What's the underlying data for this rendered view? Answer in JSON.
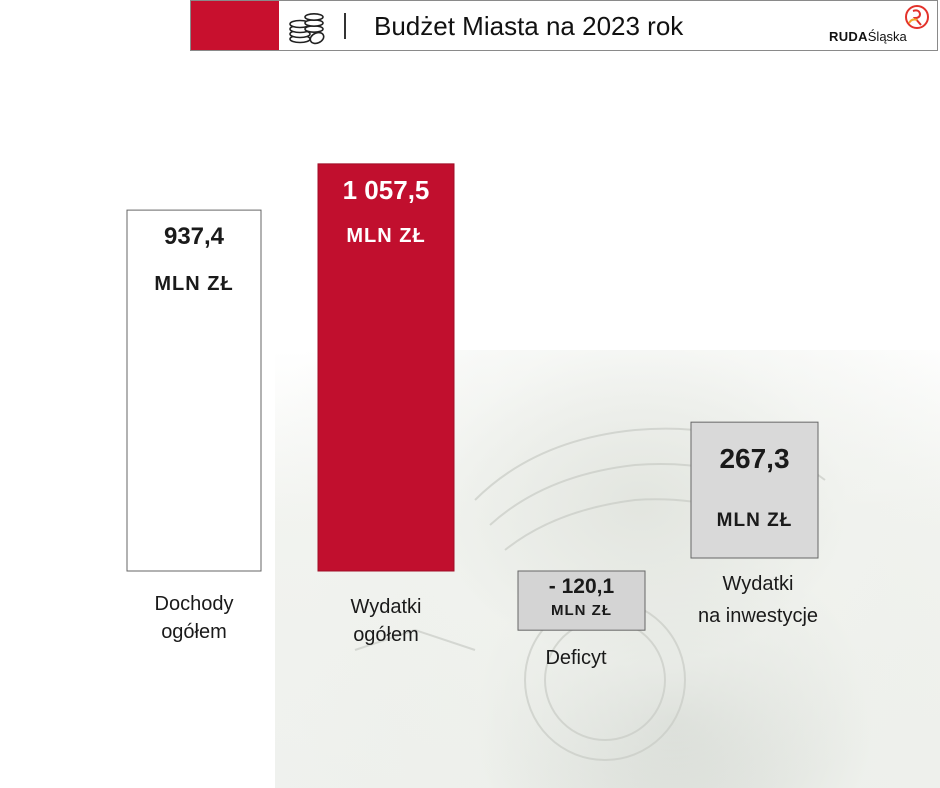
{
  "header": {
    "title": "Budżet Miasta na 2023 rok",
    "logo_bold": "RUDA",
    "logo_rest": "Śląska",
    "icon": "coins-stack-icon",
    "accent_color": "#c8102e"
  },
  "chart_data": {
    "type": "bar",
    "unit": "MLN ZŁ",
    "categories": [
      "Dochody ogółem",
      "Wydatki ogółem",
      "Deficyt",
      "Wydatki na inwestycje"
    ],
    "category_lines": [
      [
        "Dochody",
        "ogółem"
      ],
      [
        "Wydatki",
        "ogółem"
      ],
      [
        "Deficyt"
      ],
      [
        "Wydatki",
        "na inwestycje"
      ]
    ],
    "values": [
      937.4,
      1057.5,
      -120.1,
      267.3
    ],
    "value_labels": [
      "937,4",
      "1 057,5",
      "- 120,1",
      "267,3"
    ],
    "colors": [
      "#ffffff",
      "#c10f2e",
      "#d4d4d4",
      "#d9d9d9"
    ],
    "grid": false,
    "legend": "none"
  }
}
